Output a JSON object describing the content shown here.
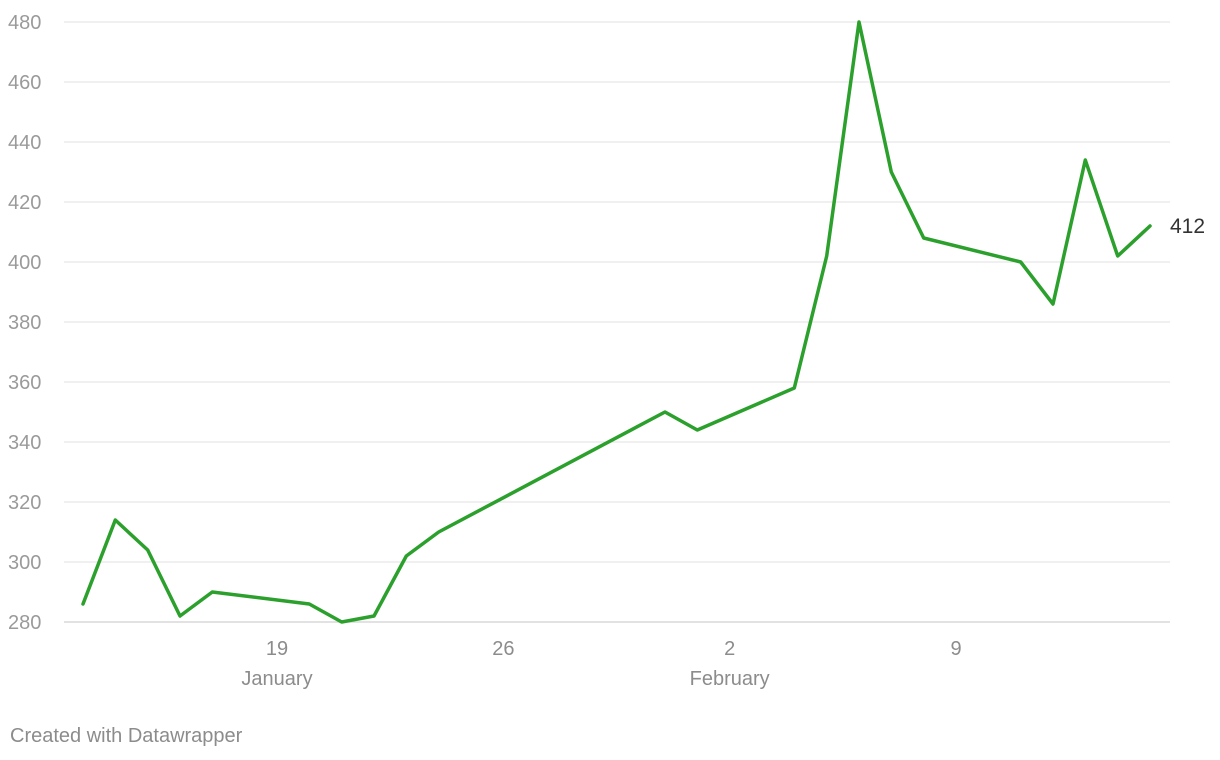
{
  "chart_data": {
    "type": "line",
    "title": "",
    "xlabel": "",
    "ylabel": "",
    "x_dates": [
      "Jan 13",
      "Jan 14",
      "Jan 15",
      "Jan 16",
      "Jan 17",
      "Jan 20",
      "Jan 21",
      "Jan 22",
      "Jan 23",
      "Jan 24",
      "Jan 31",
      "Feb 1",
      "Feb 4",
      "Feb 5",
      "Feb 6",
      "Feb 7",
      "Feb 8",
      "Feb 11",
      "Feb 12",
      "Feb 13",
      "Feb 14",
      "Feb 15"
    ],
    "x_day_index": [
      0,
      1,
      2,
      3,
      4,
      7,
      8,
      9,
      10,
      11,
      18,
      19,
      22,
      23,
      24,
      25,
      26,
      29,
      30,
      31,
      32,
      33
    ],
    "series": [
      {
        "values": [
          286,
          314,
          304,
          282,
          290,
          286,
          280,
          282,
          302,
          310,
          350,
          344,
          358,
          402,
          480,
          430,
          408,
          400,
          386,
          434,
          402,
          412
        ]
      }
    ],
    "ylim": [
      280,
      480
    ],
    "y_ticks": [
      280,
      300,
      320,
      340,
      360,
      380,
      400,
      420,
      440,
      460,
      480
    ],
    "x_ticks": [
      {
        "day": 6,
        "label": "19",
        "month": "January"
      },
      {
        "day": 13,
        "label": "26",
        "month": ""
      },
      {
        "day": 20,
        "label": "2",
        "month": "February"
      },
      {
        "day": 27,
        "label": "9",
        "month": ""
      }
    ],
    "end_label": "412",
    "grid": true,
    "line_color": "#2ca02c",
    "legend": "none"
  },
  "footer": {
    "credit": "Created with Datawrapper"
  }
}
